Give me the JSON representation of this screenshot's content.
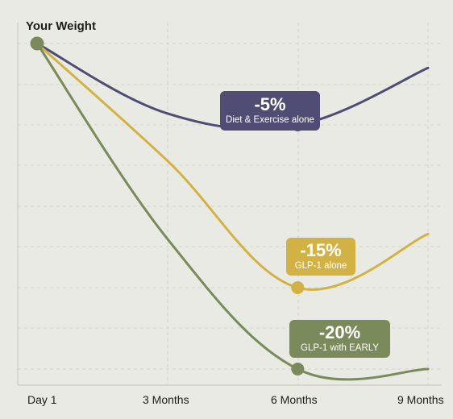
{
  "chart_data": {
    "type": "line",
    "title": "",
    "ylabel": "Your Weight",
    "xlabel": "",
    "x": [
      0,
      3,
      6,
      9
    ],
    "x_tick_labels": [
      "Day 1",
      "3 Months",
      "6 Months",
      "9 Months"
    ],
    "xlim": [
      0,
      9
    ],
    "y_units": "percent weight change",
    "ylim": [
      -20,
      0
    ],
    "grid": true,
    "series": [
      {
        "name": "Diet & Exercise alone",
        "color": "#4f4d74",
        "values": [
          0,
          -4.3,
          -5,
          -1.5
        ],
        "callout_value": "-5%",
        "callout_at_x": 6
      },
      {
        "name": "GLP-1 alone",
        "color": "#d2b245",
        "values": [
          0,
          -7.2,
          -15,
          -11.7
        ],
        "callout_value": "-15%",
        "callout_at_x": 6
      },
      {
        "name": "GLP-1 with EARLY",
        "color": "#7b8a5a",
        "values": [
          0,
          -12,
          -20,
          -20
        ],
        "callout_value": "-20%",
        "callout_at_x": 6
      }
    ],
    "start_point_color": "#7b8a5a"
  }
}
